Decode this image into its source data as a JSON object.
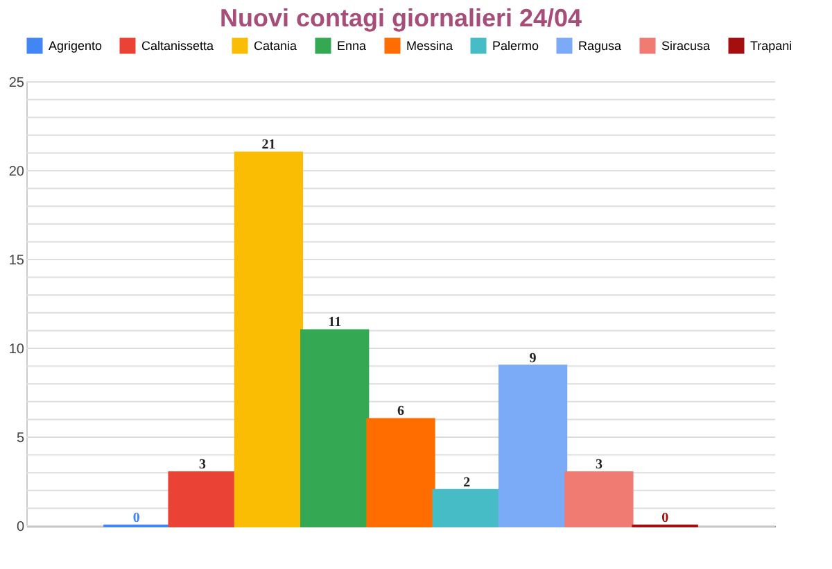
{
  "chart_data": {
    "type": "bar",
    "title": "Nuovi contagi giornalieri 24/04",
    "categories": [
      null
    ],
    "series": [
      {
        "name": "Agrigento",
        "color": "#4285f4",
        "values": [
          0
        ]
      },
      {
        "name": "Caltanissetta",
        "color": "#ea4335",
        "values": [
          3
        ]
      },
      {
        "name": "Catania",
        "color": "#fbbc04",
        "values": [
          21
        ]
      },
      {
        "name": "Enna",
        "color": "#34a853",
        "values": [
          11
        ]
      },
      {
        "name": "Messina",
        "color": "#ff6d01",
        "values": [
          6
        ]
      },
      {
        "name": "Palermo",
        "color": "#46bdc6",
        "values": [
          2
        ]
      },
      {
        "name": "Ragusa",
        "color": "#7baaf7",
        "values": [
          9
        ]
      },
      {
        "name": "Siracusa",
        "color": "#f07b72",
        "values": [
          3
        ]
      },
      {
        "name": "Trapani",
        "color": "#a50e0e",
        "values": [
          0
        ]
      }
    ],
    "ylim": [
      0,
      25
    ],
    "yticks": [
      0,
      {
        "value": 1,
        "label": null
      },
      {
        "value": 2,
        "label": null
      },
      {
        "value": 3,
        "label": null
      },
      {
        "value": 4,
        "label": null
      },
      5,
      {
        "value": 6,
        "label": null
      },
      {
        "value": 7,
        "label": null
      },
      {
        "value": 8,
        "label": null
      },
      {
        "value": 9,
        "label": null
      },
      10,
      {
        "value": 11,
        "label": null
      },
      {
        "value": 12,
        "label": null
      },
      {
        "value": 13,
        "label": null
      },
      {
        "value": 14,
        "label": null
      },
      15,
      {
        "value": 16,
        "label": null
      },
      {
        "value": 17,
        "label": null
      },
      {
        "value": 18,
        "label": null
      },
      {
        "value": 19,
        "label": null
      },
      20,
      {
        "value": 21,
        "label": null
      },
      {
        "value": 22,
        "label": null
      },
      {
        "value": 23,
        "label": null
      },
      {
        "value": 24,
        "label": null
      },
      25
    ],
    "grid": true,
    "legend": "top",
    "data_labels": true
  }
}
